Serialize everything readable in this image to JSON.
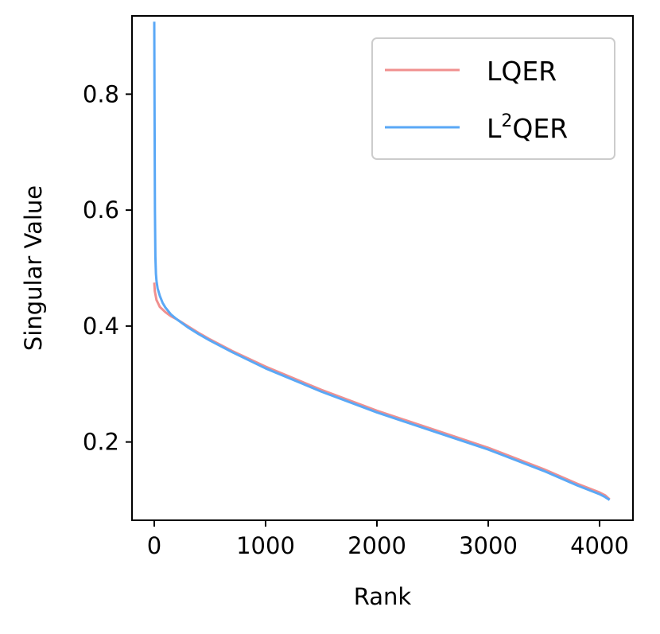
{
  "chart_data": {
    "type": "line",
    "title": "",
    "xlabel": "Rank",
    "ylabel": "Singular Value",
    "xlim": [
      -200,
      4300
    ],
    "ylim": [
      0.065,
      0.935
    ],
    "xticks": [
      0,
      1000,
      2000,
      3000,
      4000
    ],
    "xtick_labels": [
      "0",
      "1000",
      "2000",
      "3000",
      "4000"
    ],
    "yticks": [
      0.2,
      0.4,
      0.6,
      0.8
    ],
    "ytick_labels": [
      "0.2",
      "0.4",
      "0.6",
      "0.8"
    ],
    "grid": false,
    "legend_position": "top-right",
    "legend": {
      "lqer_label": "LQER",
      "l2qer_prefix": "L",
      "l2qer_sup": "2",
      "l2qer_suffix": "QER"
    },
    "series": [
      {
        "name": "LQER",
        "color": "#f0908f",
        "x": [
          0,
          5,
          20,
          50,
          100,
          150,
          200,
          300,
          400,
          500,
          700,
          1000,
          1500,
          2000,
          2500,
          3000,
          3500,
          3800,
          4000,
          4050,
          4090
        ],
        "y": [
          0.475,
          0.46,
          0.445,
          0.433,
          0.424,
          0.417,
          0.412,
          0.4,
          0.388,
          0.377,
          0.357,
          0.33,
          0.29,
          0.254,
          0.222,
          0.19,
          0.153,
          0.128,
          0.113,
          0.108,
          0.101
        ]
      },
      {
        "name": "L²QER",
        "color": "#5aa8f6",
        "x": [
          0,
          3,
          6,
          10,
          15,
          20,
          30,
          50,
          75,
          100,
          150,
          200,
          300,
          400,
          500,
          700,
          1000,
          1500,
          2000,
          2500,
          3000,
          3500,
          3800,
          4000,
          4050,
          4090
        ],
        "y": [
          0.925,
          0.75,
          0.6,
          0.52,
          0.49,
          0.478,
          0.465,
          0.452,
          0.44,
          0.432,
          0.42,
          0.412,
          0.398,
          0.386,
          0.375,
          0.355,
          0.327,
          0.287,
          0.251,
          0.219,
          0.187,
          0.15,
          0.125,
          0.11,
          0.105,
          0.1
        ]
      }
    ]
  }
}
